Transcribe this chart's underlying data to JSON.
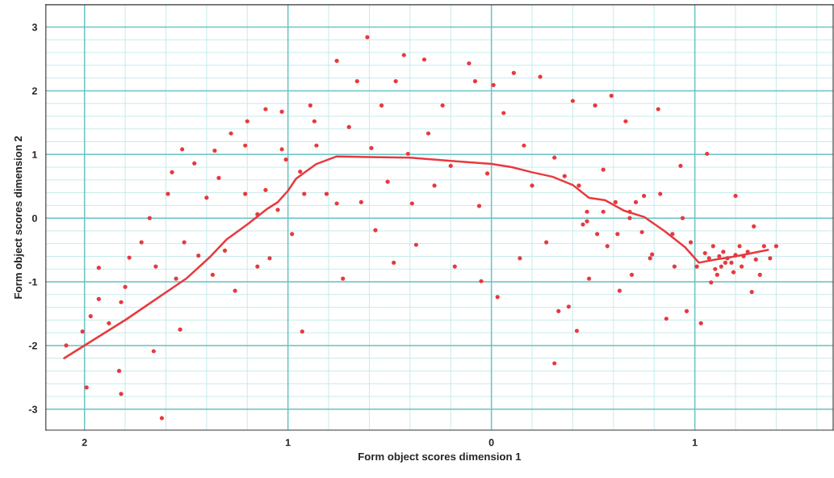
{
  "chart_data": {
    "type": "scatter",
    "xlabel": "Form object scores dimension 1",
    "ylabel": "Form object scores dimension 2",
    "xlim": [
      -2.19,
      1.68
    ],
    "ylim": [
      -3.33,
      3.35
    ],
    "xticks": [
      {
        "value": -2,
        "label": "2"
      },
      {
        "value": -1.8,
        "label": null
      },
      {
        "value": -1.6,
        "label": null
      },
      {
        "value": -1.4,
        "label": null
      },
      {
        "value": -1.2,
        "label": null
      },
      {
        "value": -1,
        "label": "1"
      },
      {
        "value": -0.8,
        "label": null
      },
      {
        "value": -0.6,
        "label": null
      },
      {
        "value": -0.4,
        "label": null
      },
      {
        "value": -0.2,
        "label": null
      },
      {
        "value": 0,
        "label": "0"
      },
      {
        "value": 0.2,
        "label": null
      },
      {
        "value": 0.4,
        "label": null
      },
      {
        "value": 0.6,
        "label": null
      },
      {
        "value": 0.8,
        "label": null
      },
      {
        "value": 1,
        "label": "1"
      },
      {
        "value": 1.2,
        "label": null
      },
      {
        "value": 1.4,
        "label": null
      },
      {
        "value": 1.6,
        "label": null
      }
    ],
    "yticks": [
      -3,
      {
        "value": -2.8,
        "label": null
      },
      {
        "value": -2.6,
        "label": null
      },
      {
        "value": -2.4,
        "label": null
      },
      {
        "value": -2.2,
        "label": null
      },
      -2,
      {
        "value": -1.8,
        "label": null
      },
      {
        "value": -1.6,
        "label": null
      },
      {
        "value": -1.4,
        "label": null
      },
      {
        "value": -1.2,
        "label": null
      },
      -1,
      {
        "value": -0.8,
        "label": null
      },
      {
        "value": -0.6,
        "label": null
      },
      {
        "value": -0.4,
        "label": null
      },
      {
        "value": -0.2,
        "label": null
      },
      0,
      {
        "value": 0.2,
        "label": null
      },
      {
        "value": 0.4,
        "label": null
      },
      {
        "value": 0.6,
        "label": null
      },
      {
        "value": 0.8,
        "label": null
      },
      1,
      {
        "value": 1.2,
        "label": null
      },
      {
        "value": 1.4,
        "label": null
      },
      {
        "value": 1.6,
        "label": null
      },
      {
        "value": 1.8,
        "label": null
      },
      2,
      {
        "value": 2.2,
        "label": null
      },
      {
        "value": 2.4,
        "label": null
      },
      {
        "value": 2.6,
        "label": null
      },
      {
        "value": 2.8,
        "label": null
      },
      3
    ],
    "grid": true,
    "marker": "circle",
    "legend": false,
    "series": [
      {
        "color": "#e8393e",
        "x": [
          -2.09,
          -2.01,
          -1.99,
          -1.97,
          -1.93,
          -1.93,
          -1.88,
          -1.82,
          -1.82,
          -1.83,
          -1.8,
          -1.78,
          -1.72,
          -1.68,
          -1.65,
          -1.66,
          -1.62,
          -1.59,
          -1.57,
          -1.55,
          -1.53,
          -1.52,
          -1.51,
          -1.46,
          -1.44,
          -1.4,
          -1.37,
          -1.36,
          -1.34,
          -1.31,
          -1.28,
          -1.26,
          -1.21,
          -1.2,
          -1.21,
          -1.15,
          -1.15,
          -1.11,
          -1.11,
          -1.09,
          -1.05,
          -1.03,
          -1.03,
          -1.01,
          -0.98,
          -0.94,
          -0.93,
          -0.92,
          -0.89,
          -0.87,
          -0.86,
          -0.81,
          -0.76,
          -0.76,
          -0.73,
          -0.7,
          -0.66,
          -0.64,
          -0.61,
          -0.59,
          -0.57,
          -0.54,
          -0.51,
          -0.48,
          -0.47,
          -0.43,
          -0.41,
          -0.39,
          -0.37,
          -0.33,
          -0.31,
          -0.28,
          -0.24,
          -0.2,
          -0.18,
          -0.11,
          -0.08,
          -0.06,
          -0.05,
          -0.02,
          0.01,
          0.03,
          0.06,
          0.11,
          0.14,
          0.16,
          0.2,
          0.24,
          0.27,
          0.31,
          0.31,
          0.33,
          0.36,
          0.38,
          0.4,
          0.42,
          0.43,
          0.47,
          0.48,
          0.51,
          0.52,
          0.55,
          0.57,
          0.59,
          0.61,
          0.63,
          0.66,
          0.68,
          0.69,
          0.71,
          0.74,
          0.78,
          0.79,
          0.82,
          0.83,
          0.86,
          0.89,
          0.9,
          0.93,
          0.94,
          0.96,
          0.98,
          1.01,
          1.03,
          1.06,
          1.07,
          1.08,
          1.09,
          1.11,
          1.13,
          1.14,
          1.16,
          1.18,
          1.2,
          1.22,
          1.23,
          1.26,
          1.28,
          1.29,
          1.32,
          1.34,
          1.37,
          1.4,
          1.12,
          1.15,
          1.2,
          1.24,
          1.1,
          1.19,
          1.05,
          1.3,
          0.75,
          0.68,
          0.62,
          0.55,
          0.45,
          0.47
        ],
        "values": [
          -2.0,
          -1.78,
          -2.66,
          -1.54,
          -0.78,
          -1.27,
          -1.65,
          -1.32,
          -2.76,
          -2.4,
          -1.08,
          -0.62,
          -0.38,
          0,
          -0.76,
          -2.09,
          -3.14,
          0.38,
          0.72,
          -0.95,
          -1.75,
          1.08,
          -0.38,
          0.86,
          -0.59,
          0.32,
          -0.89,
          1.06,
          0.63,
          -0.51,
          1.33,
          -1.14,
          1.14,
          1.52,
          0.38,
          -0.76,
          0.06,
          1.71,
          0.44,
          -0.63,
          0.13,
          1.67,
          1.08,
          0.92,
          -0.25,
          0.73,
          -1.78,
          0.38,
          1.77,
          1.52,
          1.14,
          0.38,
          2.47,
          0.23,
          -0.95,
          1.43,
          2.15,
          0.25,
          2.84,
          1.1,
          -0.19,
          1.77,
          0.57,
          -0.7,
          2.15,
          2.56,
          1.01,
          0.23,
          -0.42,
          2.49,
          1.33,
          0.51,
          1.77,
          0.82,
          -0.76,
          2.43,
          2.15,
          0.19,
          -0.99,
          0.7,
          2.09,
          -1.24,
          1.65,
          2.28,
          -0.63,
          1.14,
          0.51,
          2.22,
          -0.38,
          0.95,
          -2.28,
          -1.46,
          0.66,
          -1.39,
          1.84,
          -1.77,
          0.51,
          0.1,
          -0.95,
          1.77,
          -0.25,
          0.76,
          -0.44,
          1.92,
          0.25,
          -1.14,
          1.52,
          0.0,
          -0.89,
          0.25,
          -0.22,
          -0.63,
          -0.57,
          1.71,
          0.38,
          -1.58,
          -0.25,
          -0.76,
          0.82,
          0,
          -1.46,
          -0.38,
          -0.76,
          -1.65,
          1.01,
          -0.63,
          -1.01,
          -0.44,
          -0.89,
          -0.76,
          -0.53,
          -0.63,
          -0.7,
          0.35,
          -0.44,
          -0.76,
          -0.53,
          -1.16,
          -0.13,
          -0.89,
          -0.44,
          -0.63,
          -0.44,
          -0.6,
          -0.7,
          -0.58,
          -0.6,
          -0.8,
          -0.85,
          -0.55,
          -0.65,
          0.35,
          0.1,
          -0.25,
          0.1,
          -0.1,
          -0.05
        ]
      },
      {
        "type": "line",
        "color": "#e8393e",
        "marker": "none",
        "x": [
          -2.1,
          -1.8,
          -1.5,
          -1.38,
          -1.3,
          -1.2,
          -1.1,
          -1.05,
          -1,
          -0.96,
          -0.86,
          -0.76,
          -0.6,
          -0.4,
          -0.2,
          0,
          0.1,
          0.2,
          0.3,
          0.4,
          0.48,
          0.56,
          0.65,
          0.75,
          0.85,
          0.95,
          1.02,
          1.1,
          1.2,
          1.36
        ],
        "values": [
          -2.2,
          -1.6,
          -0.95,
          -0.6,
          -0.33,
          -0.1,
          0.15,
          0.25,
          0.43,
          0.62,
          0.85,
          0.97,
          0.96,
          0.95,
          0.9,
          0.85,
          0.8,
          0.72,
          0.65,
          0.52,
          0.32,
          0.28,
          0.12,
          0.02,
          -0.2,
          -0.45,
          -0.7,
          -0.65,
          -0.6,
          -0.5
        ]
      }
    ]
  }
}
